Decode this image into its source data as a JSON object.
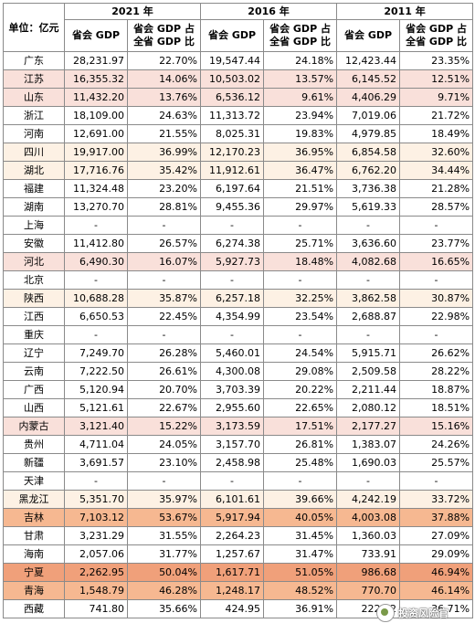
{
  "table": {
    "corner_label": "单位：亿元",
    "years": [
      "2021 年",
      "2016 年",
      "2011 年"
    ],
    "sub_headers": [
      "省会 GDP",
      "省会 GDP 占全省 GDP 比"
    ],
    "rows": [
      {
        "prov": "广东",
        "tint": "",
        "v": [
          "28,231.97",
          "22.70%",
          "19,547.44",
          "24.18%",
          "12,423.44",
          "23.35%"
        ]
      },
      {
        "prov": "江苏",
        "tint": "tint-pink",
        "v": [
          "16,355.32",
          "14.06%",
          "10,503.02",
          "13.57%",
          "6,145.52",
          "12.51%"
        ]
      },
      {
        "prov": "山东",
        "tint": "tint-pink",
        "v": [
          "11,432.20",
          "13.76%",
          "6,536.12",
          "9.61%",
          "4,406.29",
          "9.71%"
        ]
      },
      {
        "prov": "浙江",
        "tint": "",
        "v": [
          "18,109.00",
          "24.63%",
          "11,313.72",
          "23.94%",
          "7,019.06",
          "21.72%"
        ]
      },
      {
        "prov": "河南",
        "tint": "",
        "v": [
          "12,691.00",
          "21.55%",
          "8,025.31",
          "19.83%",
          "4,979.85",
          "18.49%"
        ]
      },
      {
        "prov": "四川",
        "tint": "tint-light",
        "v": [
          "19,917.00",
          "36.99%",
          "12,170.23",
          "36.95%",
          "6,854.58",
          "32.60%"
        ]
      },
      {
        "prov": "湖北",
        "tint": "tint-light",
        "v": [
          "17,716.76",
          "35.42%",
          "11,912.61",
          "36.47%",
          "6,762.20",
          "34.44%"
        ]
      },
      {
        "prov": "福建",
        "tint": "",
        "v": [
          "11,324.48",
          "23.20%",
          "6,197.64",
          "21.51%",
          "3,736.38",
          "21.28%"
        ]
      },
      {
        "prov": "湖南",
        "tint": "",
        "v": [
          "13,270.70",
          "28.81%",
          "9,455.36",
          "29.97%",
          "5,619.33",
          "28.57%"
        ]
      },
      {
        "prov": "上海",
        "tint": "",
        "v": [
          "-",
          "-",
          "-",
          "-",
          "-",
          "-"
        ]
      },
      {
        "prov": "安徽",
        "tint": "",
        "v": [
          "11,412.80",
          "26.57%",
          "6,274.38",
          "25.71%",
          "3,636.60",
          "23.77%"
        ]
      },
      {
        "prov": "河北",
        "tint": "tint-pink",
        "v": [
          "6,490.30",
          "16.07%",
          "5,927.73",
          "18.48%",
          "4,082.68",
          "16.65%"
        ]
      },
      {
        "prov": "北京",
        "tint": "",
        "v": [
          "-",
          "-",
          "-",
          "-",
          "-",
          "-"
        ]
      },
      {
        "prov": "陕西",
        "tint": "tint-light",
        "v": [
          "10,688.28",
          "35.87%",
          "6,257.18",
          "32.25%",
          "3,862.58",
          "30.87%"
        ]
      },
      {
        "prov": "江西",
        "tint": "",
        "v": [
          "6,650.53",
          "22.45%",
          "4,354.99",
          "23.54%",
          "2,688.87",
          "22.98%"
        ]
      },
      {
        "prov": "重庆",
        "tint": "",
        "v": [
          "-",
          "-",
          "-",
          "-",
          "-",
          "-"
        ]
      },
      {
        "prov": "辽宁",
        "tint": "",
        "v": [
          "7,249.70",
          "26.28%",
          "5,460.01",
          "24.54%",
          "5,915.71",
          "26.62%"
        ]
      },
      {
        "prov": "云南",
        "tint": "",
        "v": [
          "7,222.50",
          "26.61%",
          "4,300.08",
          "29.08%",
          "2,509.58",
          "28.22%"
        ]
      },
      {
        "prov": "广西",
        "tint": "",
        "v": [
          "5,120.94",
          "20.70%",
          "3,703.39",
          "20.22%",
          "2,211.44",
          "18.87%"
        ]
      },
      {
        "prov": "山西",
        "tint": "",
        "v": [
          "5,121.61",
          "22.67%",
          "2,955.60",
          "22.65%",
          "2,080.12",
          "18.51%"
        ]
      },
      {
        "prov": "内蒙古",
        "tint": "tint-pink",
        "v": [
          "3,121.40",
          "15.22%",
          "3,173.59",
          "17.51%",
          "2,177.27",
          "15.16%"
        ]
      },
      {
        "prov": "贵州",
        "tint": "",
        "v": [
          "4,711.04",
          "24.05%",
          "3,157.70",
          "26.81%",
          "1,383.07",
          "24.26%"
        ]
      },
      {
        "prov": "新疆",
        "tint": "",
        "v": [
          "3,691.57",
          "23.10%",
          "2,458.98",
          "25.48%",
          "1,690.03",
          "25.57%"
        ]
      },
      {
        "prov": "天津",
        "tint": "",
        "v": [
          "-",
          "-",
          "-",
          "-",
          "-",
          "-"
        ]
      },
      {
        "prov": "黑龙江",
        "tint": "tint-light",
        "v": [
          "5,351.70",
          "35.97%",
          "6,101.61",
          "39.66%",
          "4,242.19",
          "33.72%"
        ]
      },
      {
        "prov": "吉林",
        "tint": "tint-med",
        "v": [
          "7,103.12",
          "53.67%",
          "5,917.94",
          "40.05%",
          "4,003.08",
          "37.88%"
        ]
      },
      {
        "prov": "甘肃",
        "tint": "",
        "v": [
          "3,231.29",
          "31.55%",
          "2,264.23",
          "31.45%",
          "1,360.03",
          "27.09%"
        ]
      },
      {
        "prov": "海南",
        "tint": "",
        "v": [
          "2,057.06",
          "31.77%",
          "1,257.67",
          "31.47%",
          "733.91",
          "29.09%"
        ]
      },
      {
        "prov": "宁夏",
        "tint": "tint-dark",
        "v": [
          "2,262.95",
          "50.04%",
          "1,617.71",
          "51.05%",
          "986.68",
          "46.94%"
        ]
      },
      {
        "prov": "青海",
        "tint": "tint-med",
        "v": [
          "1,548.79",
          "46.28%",
          "1,248.17",
          "48.52%",
          "770.70",
          "46.14%"
        ]
      },
      {
        "prov": "西藏",
        "tint": "",
        "v": [
          "741.80",
          "35.66%",
          "424.95",
          "36.91%",
          "222.42",
          "36.71%"
        ]
      }
    ]
  },
  "watermark": {
    "text": "投资风险官",
    "icon": "wechat-logo-icon"
  },
  "colors": {
    "light": "#fdf1e4",
    "pink": "#f9e0da",
    "medium": "#f6b891",
    "dark": "#f0a07a"
  }
}
